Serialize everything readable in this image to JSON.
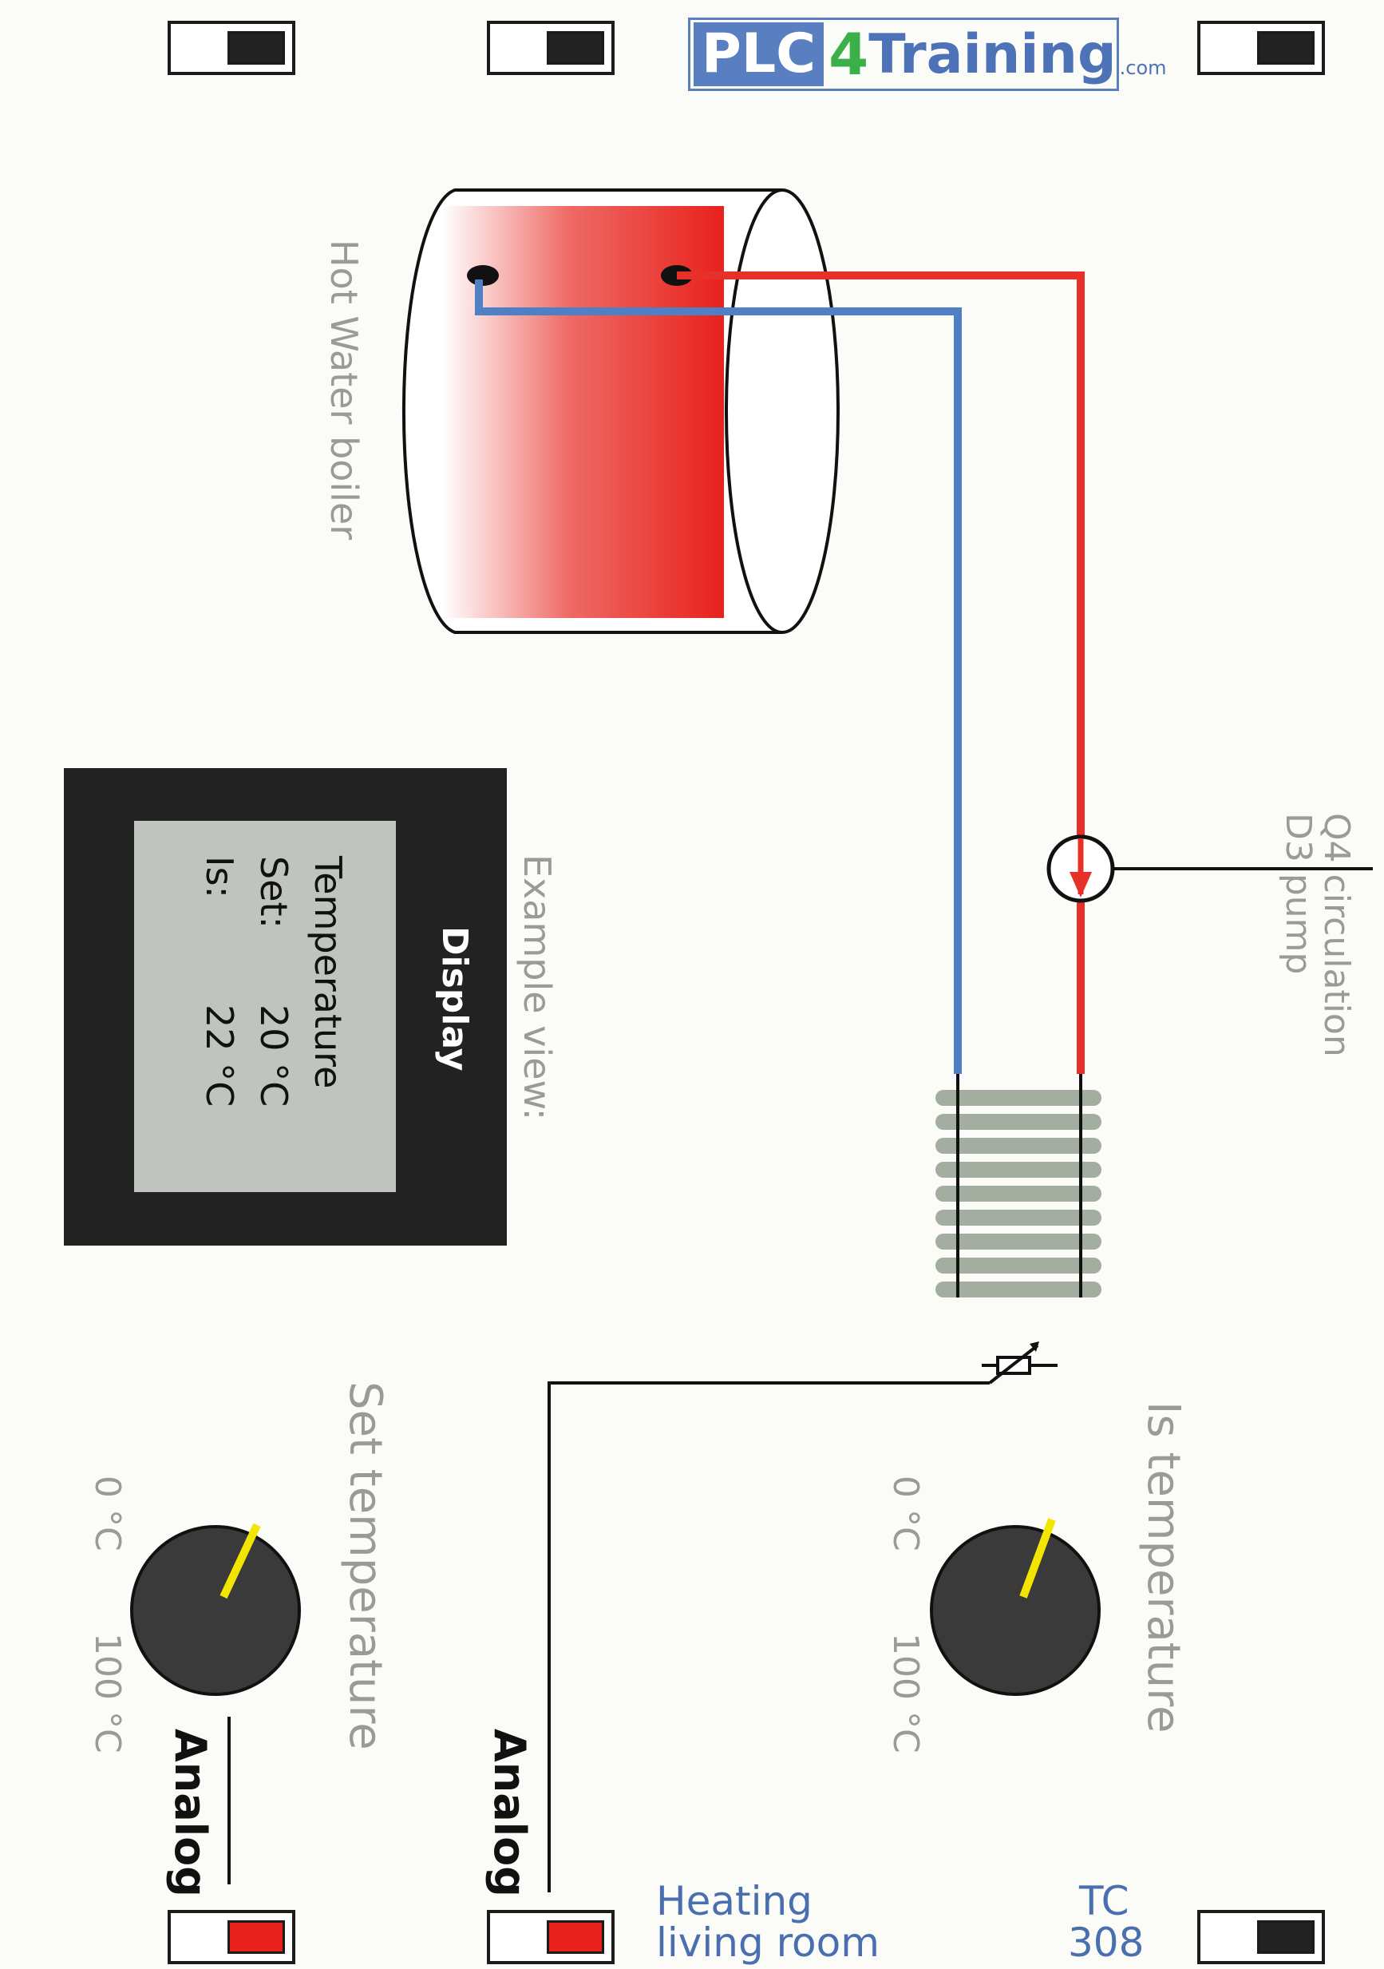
{
  "logo": {
    "part1": "PLC",
    "part2": "4",
    "part3": "Training",
    "part4": ".com"
  },
  "labels": {
    "boiler": "Hot Water boiler",
    "pump_line1": "Q4  circulation",
    "pump_line2": "D3  pump",
    "example_view": "Example view:",
    "is_temperature": "Is temperature",
    "set_temperature": "Set temperature",
    "is_scale_min": "0 °C",
    "is_scale_max": "100 °C",
    "set_scale_min": "0 °C",
    "set_scale_max": "100 °C",
    "analog_1": "Analog",
    "analog_2": "Analog",
    "heating_1": "Heating",
    "heating_2": "living room",
    "tc_1": "TC",
    "tc_2": "308"
  },
  "display": {
    "header": "Display",
    "line1": "Temperature",
    "set_label": "Set:",
    "set_value": "20 °C",
    "is_label": "Is:",
    "is_value": "22 °C"
  },
  "colors": {
    "hot": "#e8302a",
    "cold": "#4f7fc4",
    "blue_text": "#4a6fb0",
    "knob_indicator": "#f2e600"
  }
}
